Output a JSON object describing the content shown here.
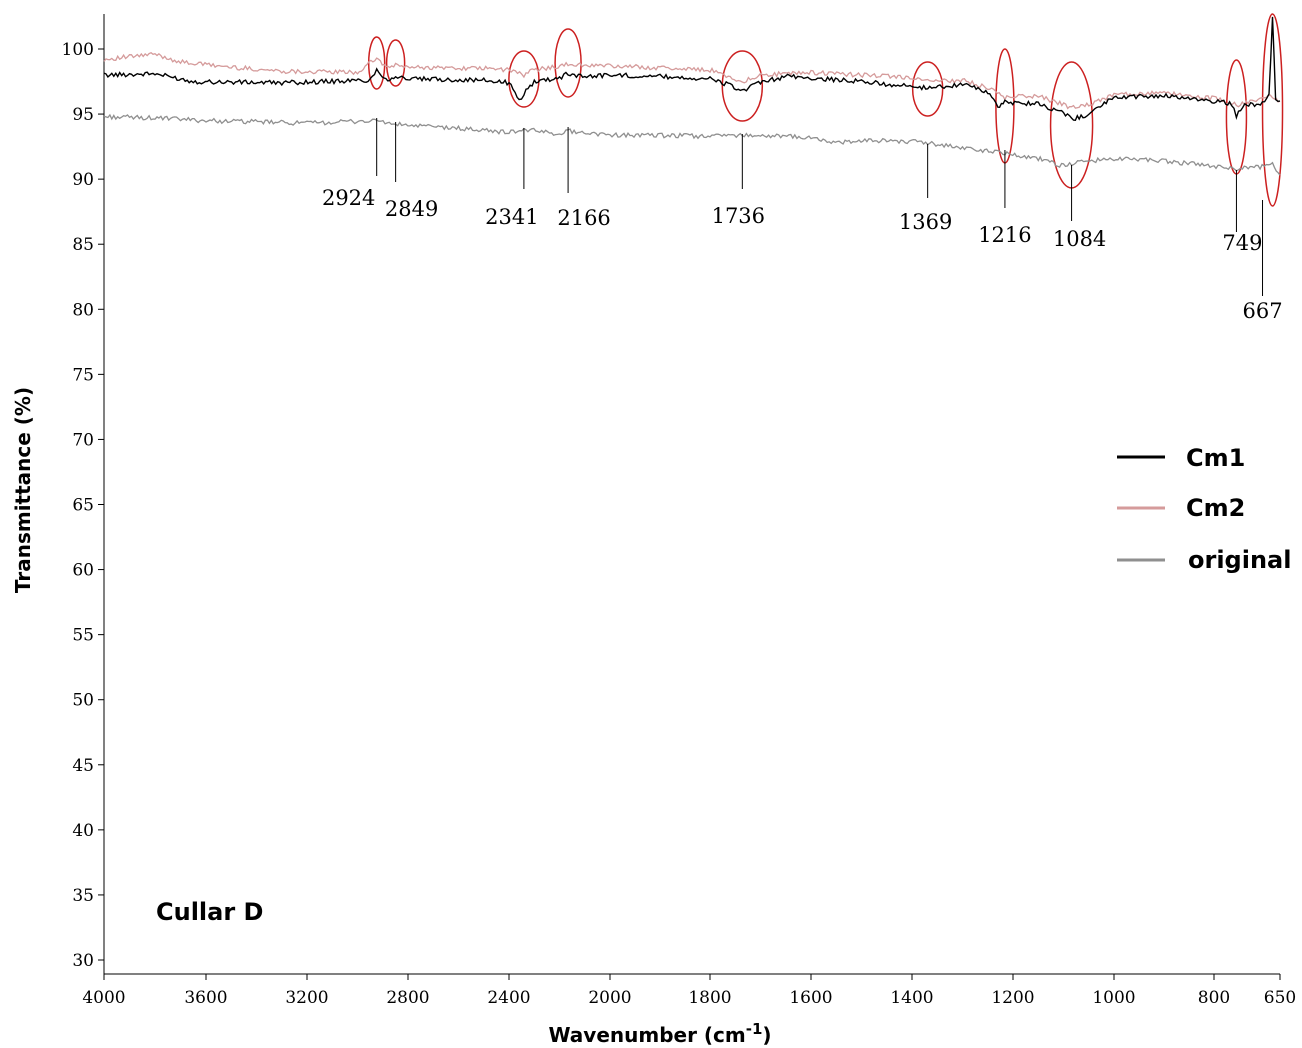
{
  "chart_data": {
    "type": "line",
    "title": "",
    "xlabel": "Wavenumber (cm",
    "xlabel_superscript": "-1",
    "xlabel_suffix": ")",
    "ylabel": "Transmittance (%)",
    "xlim": [
      4000,
      650
    ],
    "ylim": [
      30,
      100
    ],
    "x_ticks": [
      4000,
      3600,
      3200,
      2800,
      2400,
      2000,
      1800,
      1600,
      1400,
      1200,
      1000,
      800,
      650
    ],
    "y_ticks": [
      30,
      35,
      40,
      45,
      50,
      55,
      60,
      65,
      70,
      75,
      80,
      85,
      90,
      95,
      100
    ],
    "x_tick_labels": [
      "4000",
      "3600",
      "3200",
      "2800",
      "2400",
      "2000",
      "1800",
      "1600",
      "1400",
      "1200",
      "1000",
      "800",
      "650"
    ],
    "y_tick_labels": [
      "30",
      "35",
      "40",
      "45",
      "50",
      "55",
      "60",
      "65",
      "70",
      "75",
      "80",
      "85",
      "90",
      "95",
      "100"
    ],
    "annotation": "Cullar D",
    "legend_position": "right",
    "series": [
      {
        "name": "Cm1",
        "color": "#000000",
        "points": [
          [
            4000,
            98.0
          ],
          [
            3800,
            98.1
          ],
          [
            3650,
            97.5
          ],
          [
            3300,
            97.4
          ],
          [
            2950,
            97.6
          ],
          [
            2924,
            98.4
          ],
          [
            2880,
            97.6
          ],
          [
            2849,
            97.9
          ],
          [
            2800,
            97.7
          ],
          [
            2500,
            97.6
          ],
          [
            2400,
            97.4
          ],
          [
            2360,
            96.0
          ],
          [
            2341,
            96.6
          ],
          [
            2300,
            97.5
          ],
          [
            2200,
            97.8
          ],
          [
            2166,
            98.1
          ],
          [
            2100,
            97.9
          ],
          [
            2000,
            98.0
          ],
          [
            1900,
            97.9
          ],
          [
            1800,
            97.7
          ],
          [
            1760,
            97.2
          ],
          [
            1736,
            96.8
          ],
          [
            1700,
            97.4
          ],
          [
            1650,
            97.9
          ],
          [
            1500,
            97.5
          ],
          [
            1400,
            97.1
          ],
          [
            1369,
            97.0
          ],
          [
            1300,
            97.3
          ],
          [
            1250,
            96.7
          ],
          [
            1230,
            95.5
          ],
          [
            1216,
            95.9
          ],
          [
            1150,
            95.8
          ],
          [
            1100,
            95.1
          ],
          [
            1084,
            94.6
          ],
          [
            1050,
            95.0
          ],
          [
            1000,
            96.3
          ],
          [
            900,
            96.4
          ],
          [
            800,
            96.0
          ],
          [
            760,
            95.8
          ],
          [
            749,
            94.9
          ],
          [
            730,
            95.7
          ],
          [
            690,
            95.8
          ],
          [
            675,
            96.5
          ],
          [
            667,
            102.5
          ],
          [
            660,
            96.2
          ],
          [
            650,
            96.0
          ]
        ]
      },
      {
        "name": "Cm2",
        "color": "#d59b9b",
        "points": [
          [
            4000,
            99.2
          ],
          [
            3800,
            99.6
          ],
          [
            3700,
            99.0
          ],
          [
            3500,
            98.6
          ],
          [
            3300,
            98.3
          ],
          [
            3000,
            98.2
          ],
          [
            2924,
            99.3
          ],
          [
            2880,
            98.5
          ],
          [
            2849,
            98.8
          ],
          [
            2800,
            98.6
          ],
          [
            2500,
            98.5
          ],
          [
            2400,
            98.4
          ],
          [
            2341,
            98.0
          ],
          [
            2300,
            98.4
          ],
          [
            2166,
            98.8
          ],
          [
            2000,
            98.7
          ],
          [
            1800,
            98.4
          ],
          [
            1736,
            97.5
          ],
          [
            1700,
            98.0
          ],
          [
            1600,
            98.2
          ],
          [
            1400,
            97.8
          ],
          [
            1369,
            97.5
          ],
          [
            1300,
            97.6
          ],
          [
            1250,
            97.0
          ],
          [
            1216,
            96.3
          ],
          [
            1150,
            96.4
          ],
          [
            1084,
            95.5
          ],
          [
            1050,
            95.7
          ],
          [
            1000,
            96.5
          ],
          [
            900,
            96.6
          ],
          [
            800,
            96.2
          ],
          [
            749,
            95.7
          ],
          [
            700,
            96.1
          ],
          [
            667,
            96.4
          ],
          [
            650,
            96.0
          ]
        ]
      },
      {
        "name": "original",
        "color": "#8f8f8f",
        "points": [
          [
            4000,
            94.8
          ],
          [
            3800,
            94.7
          ],
          [
            3600,
            94.5
          ],
          [
            3200,
            94.3
          ],
          [
            2924,
            94.5
          ],
          [
            2849,
            94.2
          ],
          [
            2600,
            93.9
          ],
          [
            2400,
            93.6
          ],
          [
            2341,
            93.8
          ],
          [
            2200,
            93.5
          ],
          [
            2166,
            93.7
          ],
          [
            2000,
            93.4
          ],
          [
            1800,
            93.3
          ],
          [
            1736,
            93.4
          ],
          [
            1600,
            93.2
          ],
          [
            1560,
            92.8
          ],
          [
            1450,
            93.0
          ],
          [
            1369,
            92.8
          ],
          [
            1300,
            92.4
          ],
          [
            1216,
            92.0
          ],
          [
            1150,
            91.6
          ],
          [
            1100,
            91.0
          ],
          [
            1084,
            91.2
          ],
          [
            1000,
            91.6
          ],
          [
            900,
            91.4
          ],
          [
            800,
            91.0
          ],
          [
            749,
            90.8
          ],
          [
            700,
            90.9
          ],
          [
            667,
            91.2
          ],
          [
            650,
            90.3
          ]
        ]
      }
    ],
    "peak_labels": [
      {
        "label": "2924",
        "x": 2924
      },
      {
        "label": "2849",
        "x": 2849
      },
      {
        "label": "2341",
        "x": 2341
      },
      {
        "label": "2166",
        "x": 2166
      },
      {
        "label": "1736",
        "x": 1736
      },
      {
        "label": "1369",
        "x": 1369
      },
      {
        "label": "1216",
        "x": 1216
      },
      {
        "label": "1084",
        "x": 1084
      },
      {
        "label": "749",
        "x": 749
      },
      {
        "label": "667",
        "x": 667
      }
    ]
  }
}
